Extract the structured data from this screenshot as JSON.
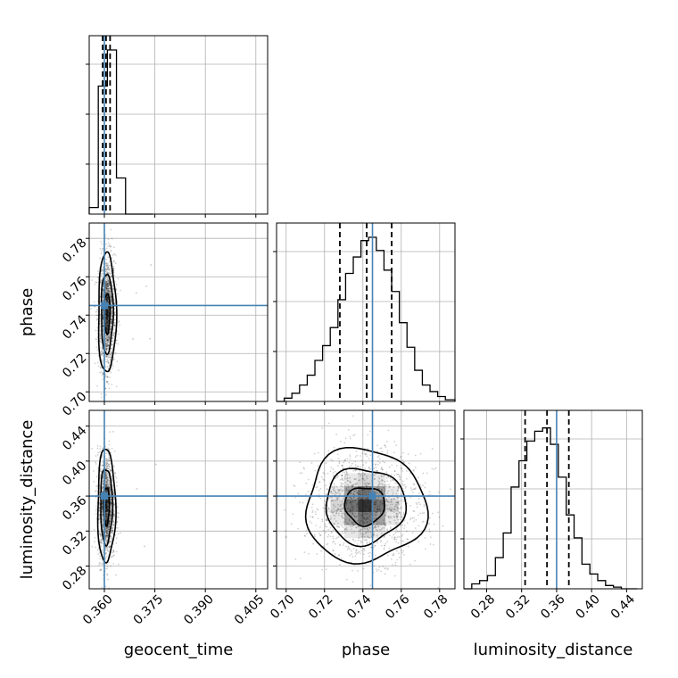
{
  "chart_data": {
    "type": "scatter",
    "parameters": [
      {
        "name": "geocent_time",
        "label": "geocent_time",
        "range": [
          0.3555,
          0.4085
        ],
        "ticks": [
          0.36,
          0.375,
          0.39,
          0.405
        ],
        "tick_labels": [
          "0.360",
          "0.375",
          "0.390",
          "0.405"
        ],
        "truth": 0.36,
        "quantiles": [
          0.3595,
          0.3605,
          0.3617
        ],
        "hist_edges": [
          0.3555,
          0.3582,
          0.3609,
          0.3636,
          0.3663,
          0.369,
          0.3717,
          0.3744
        ],
        "hist_counts": [
          0.04,
          0.78,
          1.0,
          0.22,
          0.0,
          0.0,
          0.0
        ]
      },
      {
        "name": "phase",
        "label": "phase",
        "range": [
          0.695,
          0.788
        ],
        "ticks": [
          0.7,
          0.72,
          0.74,
          0.76,
          0.78
        ],
        "tick_labels": [
          "0.70",
          "0.72",
          "0.74",
          "0.76",
          "0.78"
        ],
        "truth": 0.745,
        "quantiles": [
          0.728,
          0.742,
          0.755
        ],
        "hist_edges": [
          0.695,
          0.699,
          0.703,
          0.707,
          0.711,
          0.715,
          0.719,
          0.723,
          0.727,
          0.731,
          0.735,
          0.739,
          0.743,
          0.747,
          0.751,
          0.755,
          0.759,
          0.763,
          0.767,
          0.771,
          0.775,
          0.779,
          0.783,
          0.788
        ],
        "hist_counts": [
          0.0,
          0.02,
          0.05,
          0.1,
          0.16,
          0.25,
          0.34,
          0.45,
          0.62,
          0.78,
          0.88,
          0.98,
          1.0,
          0.92,
          0.8,
          0.67,
          0.48,
          0.33,
          0.19,
          0.1,
          0.06,
          0.03,
          0.01
        ]
      },
      {
        "name": "luminosity_distance",
        "label": "luminosity_distance",
        "range": [
          0.254,
          0.458
        ],
        "ticks": [
          0.28,
          0.32,
          0.36,
          0.4,
          0.44
        ],
        "tick_labels": [
          "0.28",
          "0.32",
          "0.36",
          "0.40",
          "0.44"
        ],
        "truth": 0.36,
        "quantiles": [
          0.324,
          0.349,
          0.374
        ],
        "hist_edges": [
          0.254,
          0.263,
          0.272,
          0.281,
          0.29,
          0.299,
          0.308,
          0.317,
          0.326,
          0.335,
          0.344,
          0.353,
          0.362,
          0.371,
          0.38,
          0.389,
          0.398,
          0.407,
          0.416,
          0.425,
          0.434,
          0.443,
          0.452
        ],
        "hist_counts": [
          0.0,
          0.03,
          0.05,
          0.08,
          0.19,
          0.34,
          0.62,
          0.78,
          0.9,
          0.96,
          0.98,
          0.88,
          0.68,
          0.45,
          0.31,
          0.15,
          0.09,
          0.05,
          0.02,
          0.01,
          0.0,
          0.0
        ]
      }
    ],
    "pairs": [
      {
        "x": "geocent_time",
        "y": "phase",
        "center": [
          0.3608,
          0.741
        ],
        "sigma": [
          0.0011,
          0.013
        ],
        "truth": [
          0.36,
          0.745
        ]
      },
      {
        "x": "geocent_time",
        "y": "luminosity_distance",
        "center": [
          0.3606,
          0.349
        ],
        "sigma": [
          0.0011,
          0.027
        ],
        "truth": [
          0.36,
          0.36
        ]
      },
      {
        "x": "phase",
        "y": "luminosity_distance",
        "center": [
          0.741,
          0.349
        ],
        "sigma": [
          0.013,
          0.027
        ],
        "truth": [
          0.745,
          0.36
        ]
      }
    ],
    "grid": true,
    "colors": {
      "truth": "#4682b4",
      "hist": "#000000",
      "density": "#000000"
    }
  }
}
